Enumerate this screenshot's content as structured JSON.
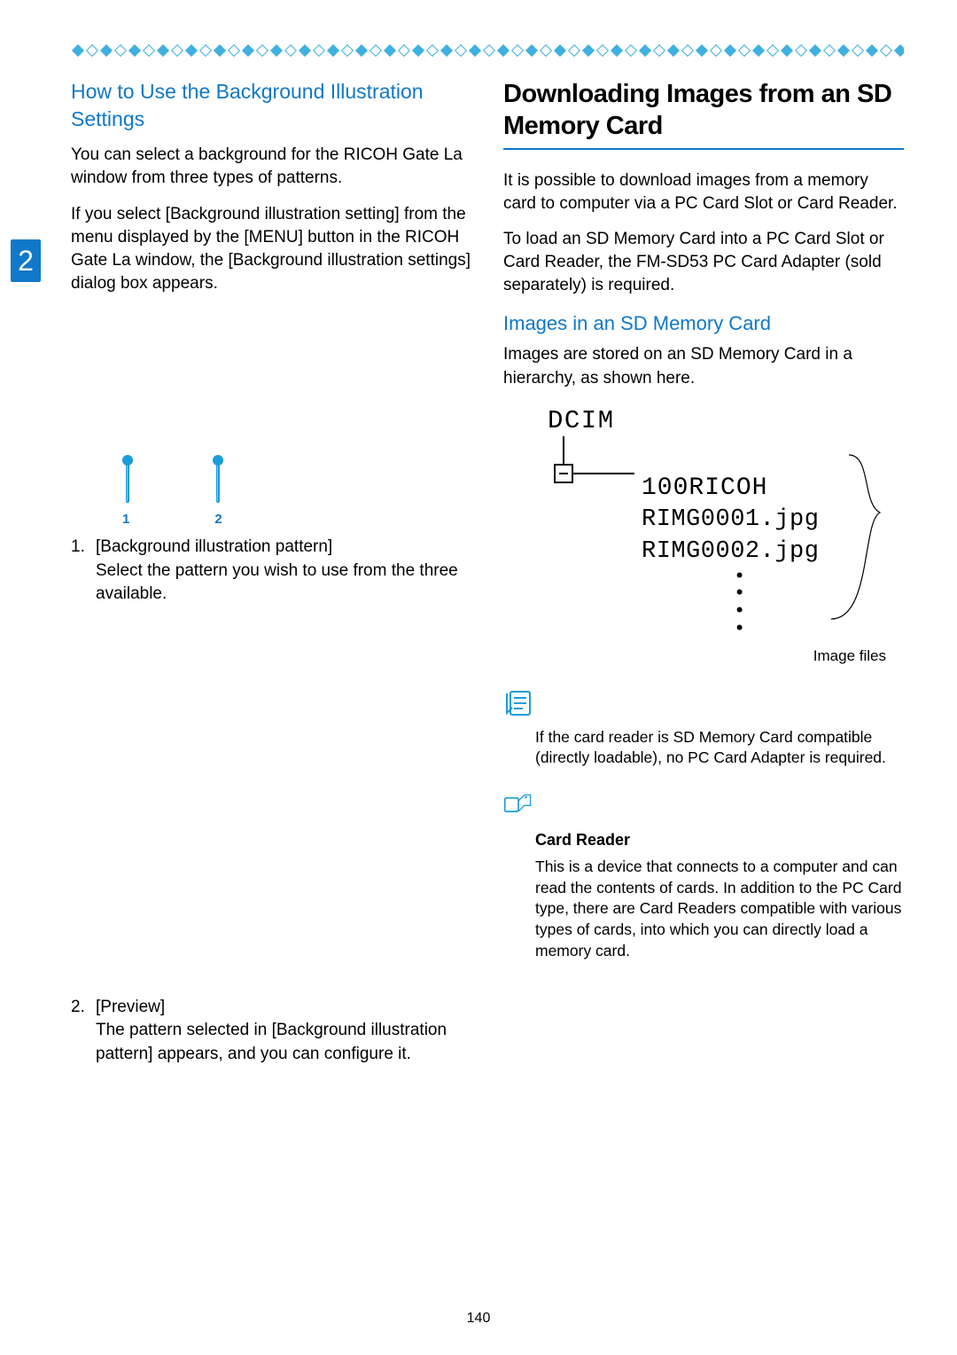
{
  "page_number": "140",
  "section_number": "2",
  "colors": {
    "accent": "#1078c8",
    "light_blue": "#3fb0e0",
    "text": "#000000",
    "background": "#ffffff"
  },
  "left": {
    "heading": "How to Use the Background Illustration Settings",
    "p1": "You can select a background for the RICOH Gate La window from three types of patterns.",
    "p2": "If you select [Background illustration setting] from the menu displayed by the [MENU] button in the RICOH Gate La window, the [Background illustration settings] dialog box appears.",
    "pin_labels": {
      "a": "1",
      "b": "2"
    },
    "item1": {
      "num": "1.",
      "title": "[Background illustration pattern]",
      "desc": "Select the pattern you wish to use from the three available."
    },
    "item2": {
      "num": "2.",
      "title": "[Preview]",
      "desc": "The pattern selected in [Background illustration pattern] appears, and you can configure it."
    }
  },
  "right": {
    "big_heading": "Downloading Images from an SD Memory Card",
    "p1": "It is possible to download images from a memory card to computer via a PC Card Slot or Card Reader.",
    "p2": "To load an SD Memory Card into a PC Card Slot or Card Reader, the FM-SD53 PC Card Adapter (sold separately) is required.",
    "sub_heading": "Images in an SD Memory Card",
    "p3": "Images are stored on an SD Memory Card in a hierarchy, as shown here.",
    "hierarchy": {
      "root": "DCIM",
      "sub": "100RICOH",
      "file1": "RIMG0001.jpg",
      "file2": "RIMG0002.jpg",
      "label": "Image files"
    },
    "note": "If the card reader is SD Memory Card compatible (directly loadable), no PC Card Adapter is required.",
    "glossary": {
      "heading": "Card Reader",
      "text": "This is a device that connects to a computer and can read the contents of cards. In addition to the PC Card type, there are Card Readers compatible with various types of cards, into which you can directly load a memory card."
    }
  }
}
